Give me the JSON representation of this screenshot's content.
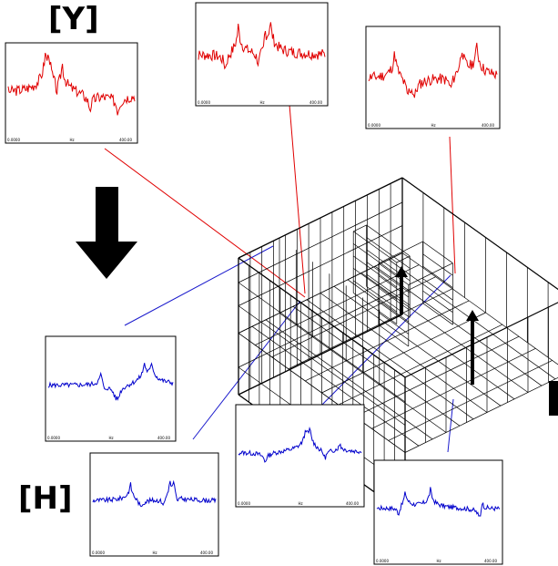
{
  "labels": {
    "response": "[Y]",
    "frf": "[H]"
  },
  "colors": {
    "response_curve": "#e00000",
    "frf_curve": "#0000cc",
    "leader_red": "#e00000",
    "leader_blue": "#1a1acc",
    "frame_border": "#000000",
    "wireframe": "#000000"
  },
  "plot_ticks": {
    "left": "0.0000",
    "mid": "Hz",
    "right": "400.00"
  },
  "icons": {
    "arrow": "down-arrow-icon",
    "force": "force-arrow-icon"
  }
}
